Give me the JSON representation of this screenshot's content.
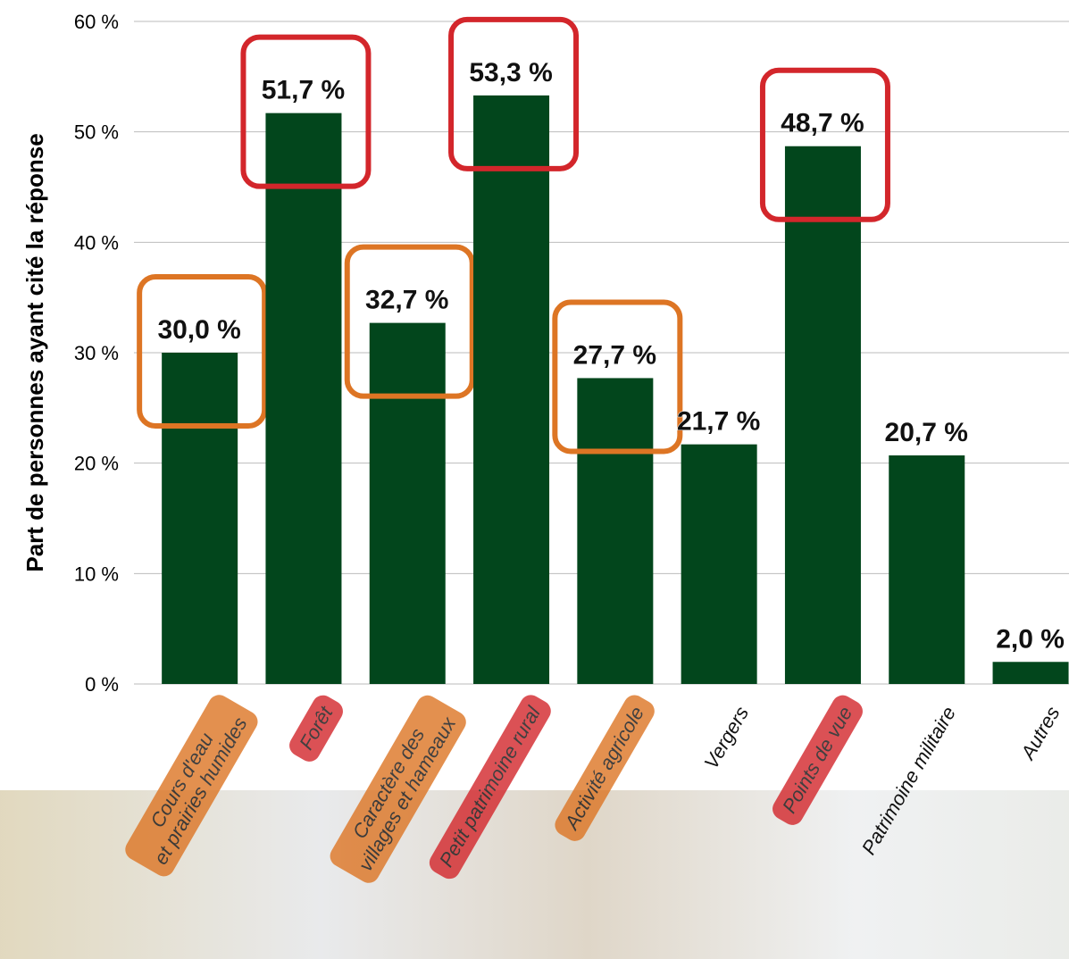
{
  "chart_data": {
    "type": "bar",
    "y_label": "Part de personnes ayant cité la réponse",
    "categories": [
      "Cours d'eau\net prairies humides",
      "Forêt",
      "Caractère des\nvillages et hameaux",
      "Petit patrimoine rural",
      "Activité agricole",
      "Vergers",
      "Points de vue",
      "Patrimoine militaire",
      "Autres"
    ],
    "values": [
      30.0,
      51.7,
      32.7,
      53.3,
      27.7,
      21.7,
      48.7,
      20.7,
      2.0
    ],
    "value_labels": [
      "30,0 %",
      "51,7 %",
      "32,7 %",
      "53,3 %",
      "27,7 %",
      "21,7 %",
      "48,7 %",
      "20,7 %",
      "2,0 %"
    ],
    "color": "#02461c",
    "highlights": [
      "#dd7524",
      "#d3262b",
      "#dd7524",
      "#d3262b",
      "#dd7524",
      null,
      "#d3262b",
      null,
      null
    ],
    "ylim": [
      0,
      60
    ],
    "yticks": [
      {
        "value": 0,
        "label": "0 %"
      },
      {
        "value": 10,
        "label": "10 %"
      },
      {
        "value": 20,
        "label": "20 %"
      },
      {
        "value": 30,
        "label": "30 %"
      },
      {
        "value": 40,
        "label": "40 %"
      },
      {
        "value": 50,
        "label": "50 %"
      },
      {
        "value": 60,
        "label": "60 %"
      }
    ],
    "grid": true
  }
}
